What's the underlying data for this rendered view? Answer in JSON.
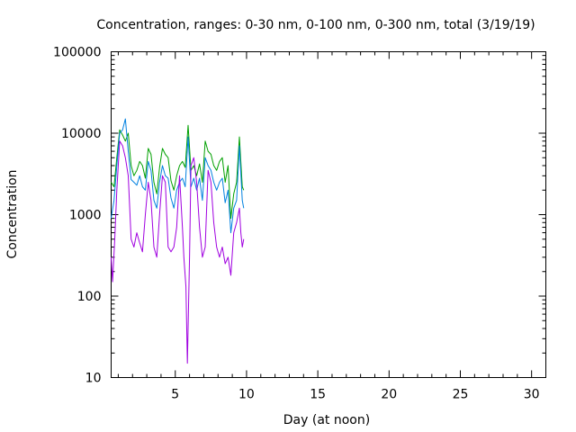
{
  "chart_data": {
    "type": "line",
    "title": "Concentration, ranges: 0-30 nm, 0-100 nm, 0-300 nm, total (3/19/19)",
    "xlabel": "Day (at noon)",
    "ylabel": "Concentration",
    "xlim": [
      0.5,
      31
    ],
    "ylim": [
      10,
      100000
    ],
    "yscale": "log",
    "grid": false,
    "x_ticks": [
      5,
      10,
      15,
      20,
      25,
      30
    ],
    "x_tick_labels": [
      "5",
      "10",
      "15",
      "20",
      "25",
      "30"
    ],
    "y_ticks": [
      10,
      100,
      1000,
      10000,
      100000
    ],
    "y_tick_labels": [
      "10",
      "100",
      "1000",
      "10000",
      "100000"
    ],
    "series": [
      {
        "color": "#00a000",
        "x": [
          0.5,
          0.7,
          0.9,
          1.1,
          1.3,
          1.5,
          1.7,
          1.9,
          2.1,
          2.3,
          2.5,
          2.7,
          2.9,
          3.1,
          3.3,
          3.5,
          3.7,
          3.9,
          4.1,
          4.3,
          4.5,
          4.7,
          4.9,
          5.1,
          5.3,
          5.5,
          5.7,
          5.9,
          6.1,
          6.3,
          6.5,
          6.7,
          6.9,
          7.1,
          7.3,
          7.5,
          7.7,
          7.9,
          8.1,
          8.3,
          8.5,
          8.7,
          8.9,
          9.1,
          9.3,
          9.5,
          9.7,
          9.8
        ],
        "y": [
          2500,
          2200,
          5000,
          11000,
          9500,
          8000,
          10000,
          4000,
          3000,
          3500,
          4500,
          4000,
          2800,
          6500,
          5500,
          2500,
          1800,
          3800,
          6500,
          5500,
          5000,
          2600,
          2000,
          3000,
          4000,
          4500,
          3800,
          12500,
          3500,
          4000,
          3000,
          4200,
          2500,
          8000,
          6000,
          5500,
          4000,
          3500,
          4500,
          5000,
          2500,
          4000,
          900,
          1800,
          2500,
          9000,
          2200,
          2000
        ]
      },
      {
        "color": "#0080e0",
        "x": [
          0.5,
          0.7,
          0.9,
          1.1,
          1.3,
          1.5,
          1.7,
          1.9,
          2.1,
          2.3,
          2.5,
          2.7,
          2.9,
          3.1,
          3.3,
          3.5,
          3.7,
          3.9,
          4.1,
          4.3,
          4.5,
          4.7,
          4.9,
          5.1,
          5.3,
          5.5,
          5.7,
          5.9,
          6.1,
          6.3,
          6.5,
          6.7,
          6.9,
          7.1,
          7.3,
          7.5,
          7.7,
          7.9,
          8.1,
          8.3,
          8.5,
          8.7,
          8.9,
          9.1,
          9.3,
          9.5,
          9.7,
          9.8
        ],
        "y": [
          900,
          1500,
          4000,
          10000,
          11000,
          15000,
          6000,
          2700,
          2500,
          2300,
          3000,
          2200,
          2000,
          4500,
          3500,
          1500,
          1200,
          2500,
          4000,
          3000,
          2800,
          1600,
          1200,
          2000,
          2500,
          2800,
          2200,
          9000,
          2200,
          2800,
          2000,
          2800,
          1500,
          5000,
          4000,
          3500,
          2500,
          2000,
          2500,
          2800,
          1400,
          2000,
          600,
          1200,
          1500,
          7000,
          1500,
          1200
        ]
      },
      {
        "color": "#a000e0",
        "x": [
          0.5,
          0.6,
          0.75,
          0.9,
          1.1,
          1.3,
          1.5,
          1.7,
          1.9,
          2.1,
          2.3,
          2.5,
          2.7,
          2.9,
          3.1,
          3.3,
          3.5,
          3.7,
          3.9,
          4.1,
          4.3,
          4.5,
          4.7,
          4.9,
          5.1,
          5.3,
          5.5,
          5.6,
          5.75,
          5.85,
          6.0,
          6.1,
          6.3,
          6.5,
          6.7,
          6.9,
          7.1,
          7.3,
          7.5,
          7.7,
          7.9,
          8.1,
          8.3,
          8.5,
          8.7,
          8.9,
          9.1,
          9.3,
          9.5,
          9.6,
          9.7,
          9.8
        ],
        "y": [
          300,
          150,
          500,
          2000,
          8000,
          7000,
          5000,
          3000,
          500,
          400,
          600,
          450,
          350,
          1000,
          2500,
          1500,
          400,
          300,
          1000,
          3000,
          2500,
          400,
          350,
          400,
          700,
          3000,
          700,
          300,
          130,
          15,
          300,
          4000,
          5000,
          2500,
          700,
          300,
          400,
          3500,
          2500,
          800,
          400,
          300,
          400,
          250,
          300,
          180,
          600,
          800,
          1200,
          600,
          400,
          500
        ]
      }
    ]
  }
}
